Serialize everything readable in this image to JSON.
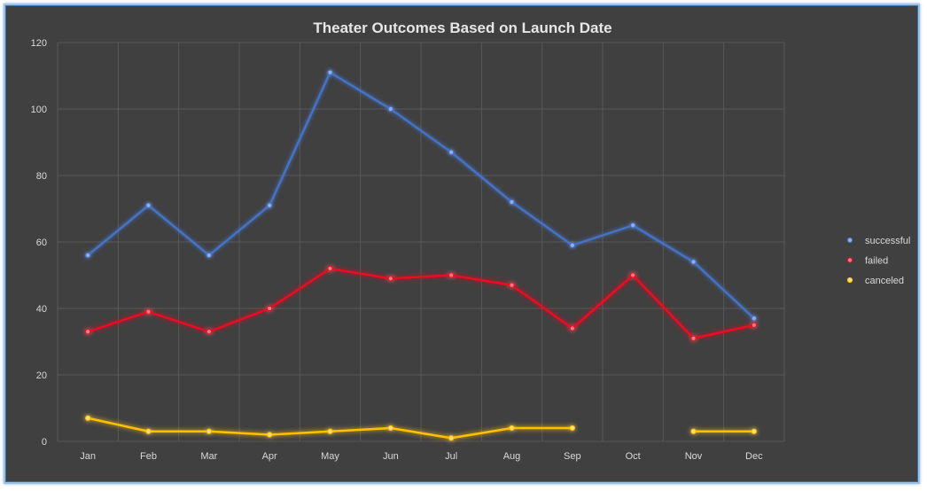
{
  "chart_data": {
    "type": "line",
    "title": "Theater Outcomes Based on Launch Date",
    "xlabel": "",
    "ylabel": "",
    "categories": [
      "Jan",
      "Feb",
      "Mar",
      "Apr",
      "May",
      "Jun",
      "Jul",
      "Aug",
      "Sep",
      "Oct",
      "Nov",
      "Dec"
    ],
    "ylim": [
      0,
      120
    ],
    "yticks": [
      "0",
      "20",
      "40",
      "60",
      "80",
      "100",
      "120"
    ],
    "grid": true,
    "legend_position": "right",
    "series": [
      {
        "name": "successful",
        "color": "#4472c4",
        "values": [
          56,
          71,
          56,
          71,
          111,
          100,
          87,
          72,
          59,
          65,
          54,
          37
        ]
      },
      {
        "name": "failed",
        "color": "#e81123",
        "values": [
          33,
          39,
          33,
          40,
          52,
          49,
          50,
          47,
          34,
          50,
          31,
          35
        ]
      },
      {
        "name": "canceled",
        "color": "#ffc000",
        "values": [
          7,
          3,
          3,
          2,
          3,
          4,
          1,
          4,
          4,
          null,
          3,
          3
        ]
      }
    ]
  }
}
